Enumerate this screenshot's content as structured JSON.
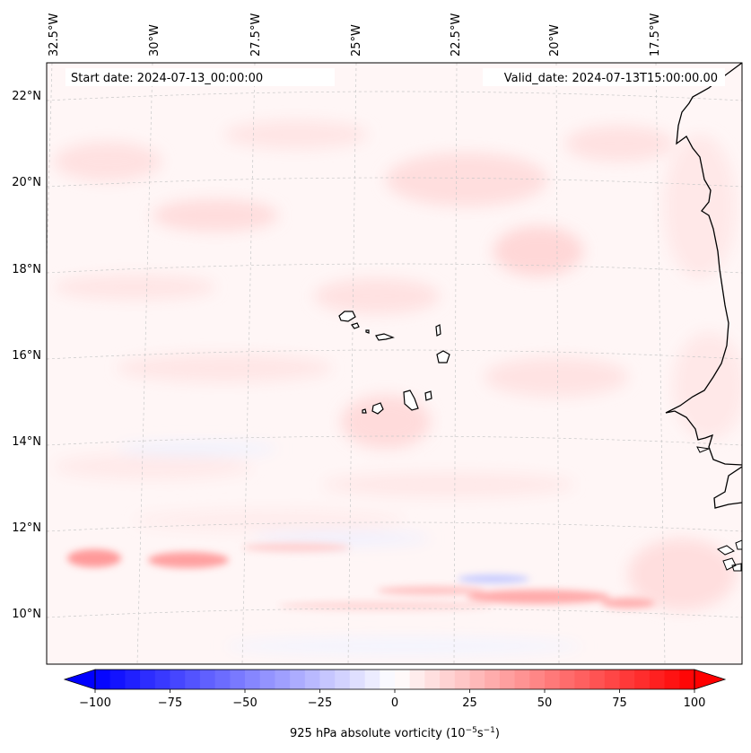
{
  "map": {
    "start_date_label": "Start date: 2024-07-13_00:00:00",
    "valid_date_label": "Valid_date: 2024-07-13T15:00:00.00",
    "longitude_labels": [
      "32.5°W",
      "30°W",
      "27.5°W",
      "25°W",
      "22.5°W",
      "20°W",
      "17.5°W"
    ],
    "latitude_labels": [
      "22°N",
      "20°N",
      "18°N",
      "16°N",
      "14°N",
      "12°N",
      "10°N"
    ],
    "features": [
      "Cape Verde Islands",
      "West African coastline"
    ]
  },
  "colorbar": {
    "ticks": [
      "−100",
      "−75",
      "−50",
      "−25",
      "0",
      "25",
      "50",
      "75",
      "100"
    ],
    "tick_values": [
      -100,
      -75,
      -50,
      -25,
      0,
      25,
      50,
      75,
      100
    ],
    "range": [
      -100,
      100
    ],
    "levels": 40,
    "label_prefix": "925 hPa absolute vorticity (10",
    "label_exp1": "−5",
    "label_mid": "s",
    "label_exp2": "−1",
    "label_suffix": ")",
    "cmap": "bwr",
    "negative_color": "#0000ff",
    "positive_color": "#ff0000"
  },
  "colors": {
    "frame": "#000000",
    "gridline": "#c8c8c8",
    "background": "#fff6f6",
    "coastline": "#000000"
  }
}
